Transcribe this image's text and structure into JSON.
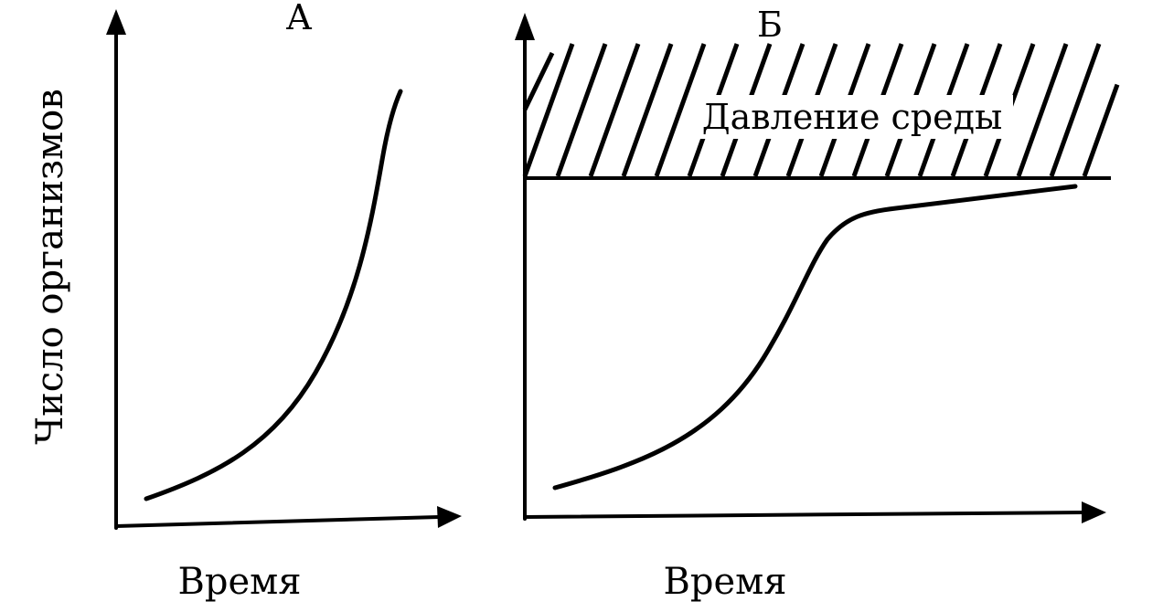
{
  "diagram": {
    "y_axis_label": "Число организмов",
    "panel_a": {
      "title": "А",
      "x_axis_label": "Время"
    },
    "panel_b": {
      "title": "Б",
      "x_axis_label": "Время",
      "pressure_label": "Давление среды"
    }
  }
}
